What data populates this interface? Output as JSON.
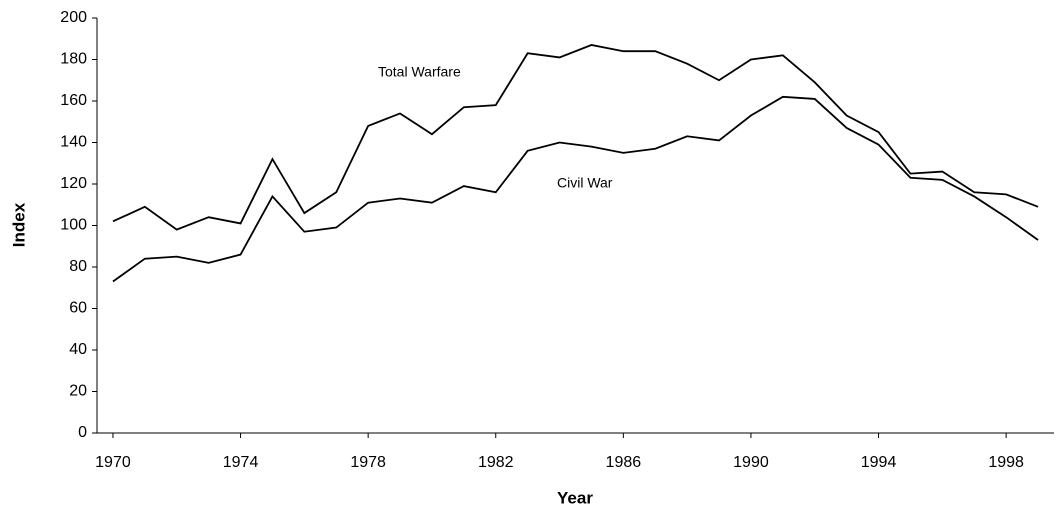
{
  "chart_data": {
    "type": "line",
    "x_label": "Year",
    "y_label": "Index",
    "x": [
      1970,
      1971,
      1972,
      1973,
      1974,
      1975,
      1976,
      1977,
      1978,
      1979,
      1980,
      1981,
      1982,
      1983,
      1984,
      1985,
      1986,
      1987,
      1988,
      1989,
      1990,
      1991,
      1992,
      1993,
      1994,
      1995,
      1996,
      1997,
      1998,
      1999
    ],
    "series": [
      {
        "name": "Total Warfare",
        "color": "#000000",
        "values": [
          102,
          109,
          98,
          104,
          101,
          132,
          106,
          116,
          148,
          154,
          144,
          157,
          158,
          183,
          181,
          187,
          184,
          184,
          178,
          170,
          180,
          182,
          169,
          153,
          145,
          125,
          126,
          116,
          115,
          109
        ]
      },
      {
        "name": "Civil War",
        "color": "#000000",
        "values": [
          73,
          84,
          85,
          82,
          86,
          114,
          97,
          99,
          111,
          113,
          111,
          119,
          116,
          136,
          140,
          138,
          135,
          137,
          143,
          141,
          153,
          162,
          161,
          147,
          139,
          123,
          122,
          114,
          104,
          93
        ]
      }
    ],
    "xlim": [
      1969.5,
      1999.5
    ],
    "xticks": [
      1970,
      1974,
      1978,
      1982,
      1986,
      1990,
      1994,
      1998
    ],
    "ylim": [
      0,
      200
    ],
    "yticks": [
      0,
      20,
      40,
      60,
      80,
      100,
      120,
      140,
      160,
      180,
      200
    ]
  }
}
